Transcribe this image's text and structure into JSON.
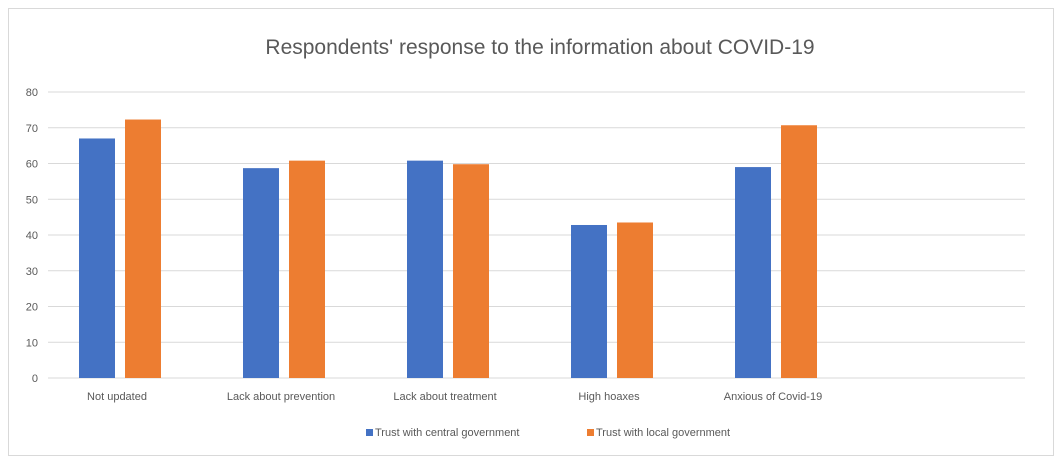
{
  "colors": {
    "series_1": "#4472C4",
    "series_2": "#ED7D31",
    "grid": "#d9d9d9",
    "text": "#595959"
  },
  "chart_data": {
    "type": "bar",
    "title": "Respondents' response to the information about COVID-19",
    "xlabel": "",
    "ylabel": "",
    "ylim": [
      0,
      80
    ],
    "yticks": [
      0,
      10,
      20,
      30,
      40,
      50,
      60,
      70,
      80
    ],
    "grid": true,
    "legend_position": "bottom",
    "categories": [
      "Not updated",
      "Lack about prevention",
      "Lack about treatment",
      "High hoaxes",
      "Anxious of Covid-19"
    ],
    "series": [
      {
        "name": "Trust with central government",
        "values": [
          67,
          58.7,
          60.8,
          42.8,
          59
        ]
      },
      {
        "name": "Trust with local government",
        "values": [
          72.3,
          60.8,
          59.8,
          43.5,
          70.7
        ]
      }
    ]
  }
}
